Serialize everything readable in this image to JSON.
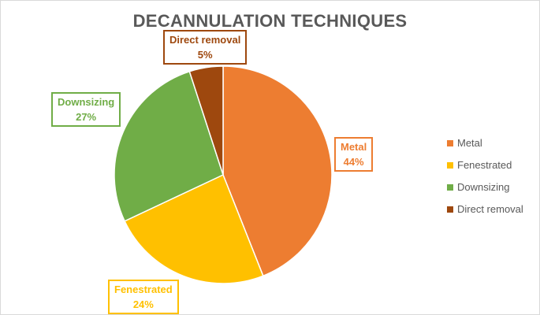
{
  "chart_data": {
    "type": "pie",
    "title": "DECANNULATION TECHNIQUES",
    "categories": [
      "Metal",
      "Fenestrated",
      "Downsizing",
      "Direct removal"
    ],
    "values": [
      44,
      24,
      27,
      5
    ],
    "value_labels": [
      "44%",
      "24%",
      "27%",
      "5%"
    ],
    "colors": [
      "#ED7D31",
      "#FFC000",
      "#70AD47",
      "#9E480E"
    ],
    "start_angle": "12 o'clock, clockwise",
    "legend_position": "right"
  },
  "label_text_colors": [
    "#ED7D31",
    "#FFC000",
    "#70AD47",
    "#9E480E"
  ]
}
